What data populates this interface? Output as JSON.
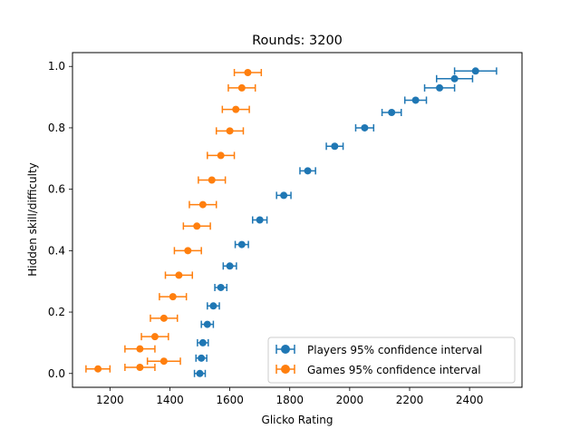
{
  "chart_data": {
    "type": "scatter",
    "title": "Rounds: 3200",
    "xlabel": "Glicko Rating",
    "ylabel": "Hidden skill/difficulty",
    "xlim": [
      1075,
      2575
    ],
    "ylim": [
      -0.045,
      1.045
    ],
    "xticks": [
      1200,
      1400,
      1600,
      1800,
      2000,
      2200,
      2400
    ],
    "yticks": [
      0.0,
      0.2,
      0.4,
      0.6,
      0.8,
      1.0
    ],
    "grid": false,
    "legend_position": "lower-right",
    "series": [
      {
        "name": "Players 95% confidence interval",
        "color": "#1f77b4",
        "marker": "circle",
        "error_bars": "horizontal",
        "points": [
          {
            "x": 1500,
            "y": 0.0,
            "err": 18
          },
          {
            "x": 1505,
            "y": 0.05,
            "err": 18
          },
          {
            "x": 1510,
            "y": 0.1,
            "err": 18
          },
          {
            "x": 1525,
            "y": 0.16,
            "err": 20
          },
          {
            "x": 1545,
            "y": 0.22,
            "err": 20
          },
          {
            "x": 1570,
            "y": 0.28,
            "err": 20
          },
          {
            "x": 1600,
            "y": 0.35,
            "err": 22
          },
          {
            "x": 1640,
            "y": 0.42,
            "err": 22
          },
          {
            "x": 1700,
            "y": 0.5,
            "err": 24
          },
          {
            "x": 1780,
            "y": 0.58,
            "err": 24
          },
          {
            "x": 1860,
            "y": 0.66,
            "err": 26
          },
          {
            "x": 1950,
            "y": 0.74,
            "err": 28
          },
          {
            "x": 2050,
            "y": 0.8,
            "err": 30
          },
          {
            "x": 2140,
            "y": 0.85,
            "err": 32
          },
          {
            "x": 2220,
            "y": 0.89,
            "err": 36
          },
          {
            "x": 2300,
            "y": 0.93,
            "err": 50
          },
          {
            "x": 2350,
            "y": 0.96,
            "err": 60
          },
          {
            "x": 2420,
            "y": 0.985,
            "err": 70
          }
        ]
      },
      {
        "name": "Games 95% confidence interval",
        "color": "#ff7f0e",
        "marker": "circle",
        "error_bars": "horizontal",
        "points": [
          {
            "x": 1160,
            "y": 0.015,
            "err": 40
          },
          {
            "x": 1300,
            "y": 0.02,
            "err": 50
          },
          {
            "x": 1380,
            "y": 0.04,
            "err": 55
          },
          {
            "x": 1300,
            "y": 0.08,
            "err": 50
          },
          {
            "x": 1350,
            "y": 0.12,
            "err": 45
          },
          {
            "x": 1380,
            "y": 0.18,
            "err": 45
          },
          {
            "x": 1410,
            "y": 0.25,
            "err": 45
          },
          {
            "x": 1430,
            "y": 0.32,
            "err": 45
          },
          {
            "x": 1460,
            "y": 0.4,
            "err": 45
          },
          {
            "x": 1490,
            "y": 0.48,
            "err": 45
          },
          {
            "x": 1510,
            "y": 0.55,
            "err": 45
          },
          {
            "x": 1540,
            "y": 0.63,
            "err": 45
          },
          {
            "x": 1570,
            "y": 0.71,
            "err": 45
          },
          {
            "x": 1600,
            "y": 0.79,
            "err": 45
          },
          {
            "x": 1620,
            "y": 0.86,
            "err": 45
          },
          {
            "x": 1640,
            "y": 0.93,
            "err": 45
          },
          {
            "x": 1660,
            "y": 0.98,
            "err": 45
          }
        ]
      }
    ]
  }
}
